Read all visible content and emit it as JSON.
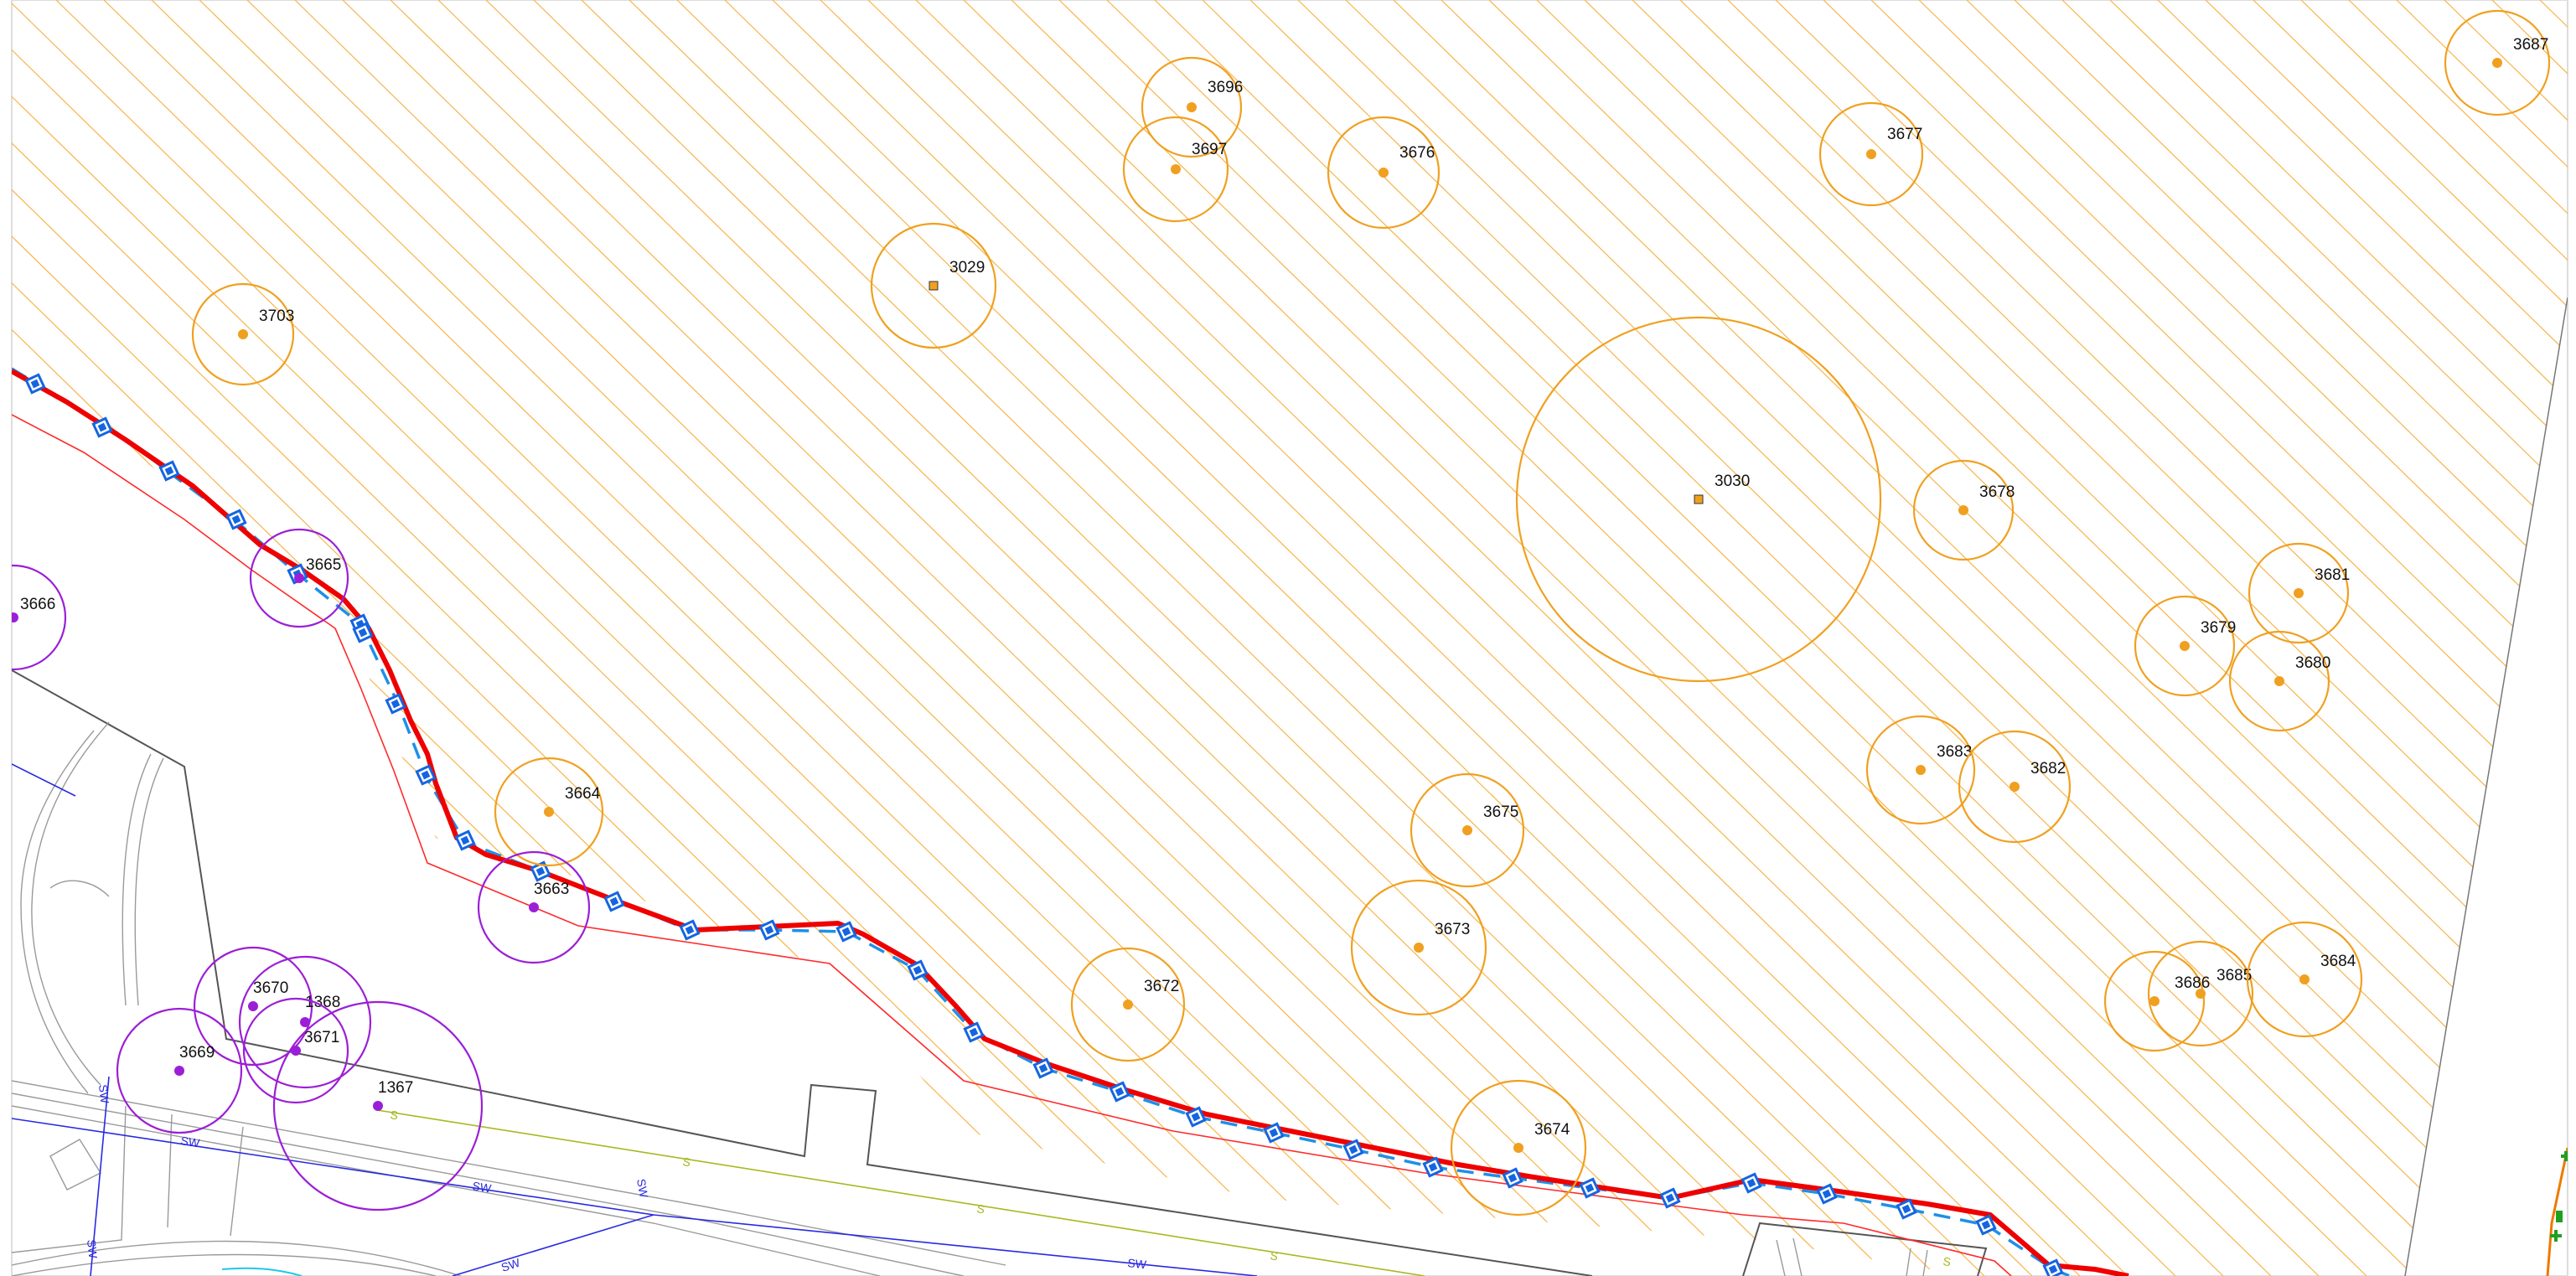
{
  "map": {
    "colors": {
      "hatch": "#f7b44a",
      "tree": "#f0a020",
      "tree_purple": "#9b1fd6",
      "red_line": "#ee0000",
      "thin_red": "#ff2a2a",
      "blue_dash": "#1e90e8",
      "vertex": "#1565e0",
      "road": "#555555",
      "sw": "#2a2ae0",
      "sewer": "#a8b820",
      "green_marker": "#20a020"
    },
    "icons": [
      "vertex-square-icon",
      "tree-point-icon",
      "survey-marker-icon",
      "green-plus-icon"
    ],
    "trees": [
      {
        "id": "3687"
      },
      {
        "id": "3696"
      },
      {
        "id": "3697"
      },
      {
        "id": "3676"
      },
      {
        "id": "3677"
      },
      {
        "id": "3029"
      },
      {
        "id": "3703"
      },
      {
        "id": "3030"
      },
      {
        "id": "3678"
      },
      {
        "id": "3681"
      },
      {
        "id": "3679"
      },
      {
        "id": "3680"
      },
      {
        "id": "3683"
      },
      {
        "id": "3682"
      },
      {
        "id": "3675"
      },
      {
        "id": "3673"
      },
      {
        "id": "3664"
      },
      {
        "id": "3672"
      },
      {
        "id": "3686"
      },
      {
        "id": "3685"
      },
      {
        "id": "3684"
      },
      {
        "id": "3674"
      }
    ],
    "protected_trees": [
      {
        "id": "3665"
      },
      {
        "id": "3666"
      },
      {
        "id": "3663"
      },
      {
        "id": "3670"
      },
      {
        "id": "1368"
      },
      {
        "id": "3671"
      },
      {
        "id": "3669"
      },
      {
        "id": "1367"
      }
    ],
    "utility_labels": {
      "storm": "SW",
      "sewer": "S"
    }
  }
}
